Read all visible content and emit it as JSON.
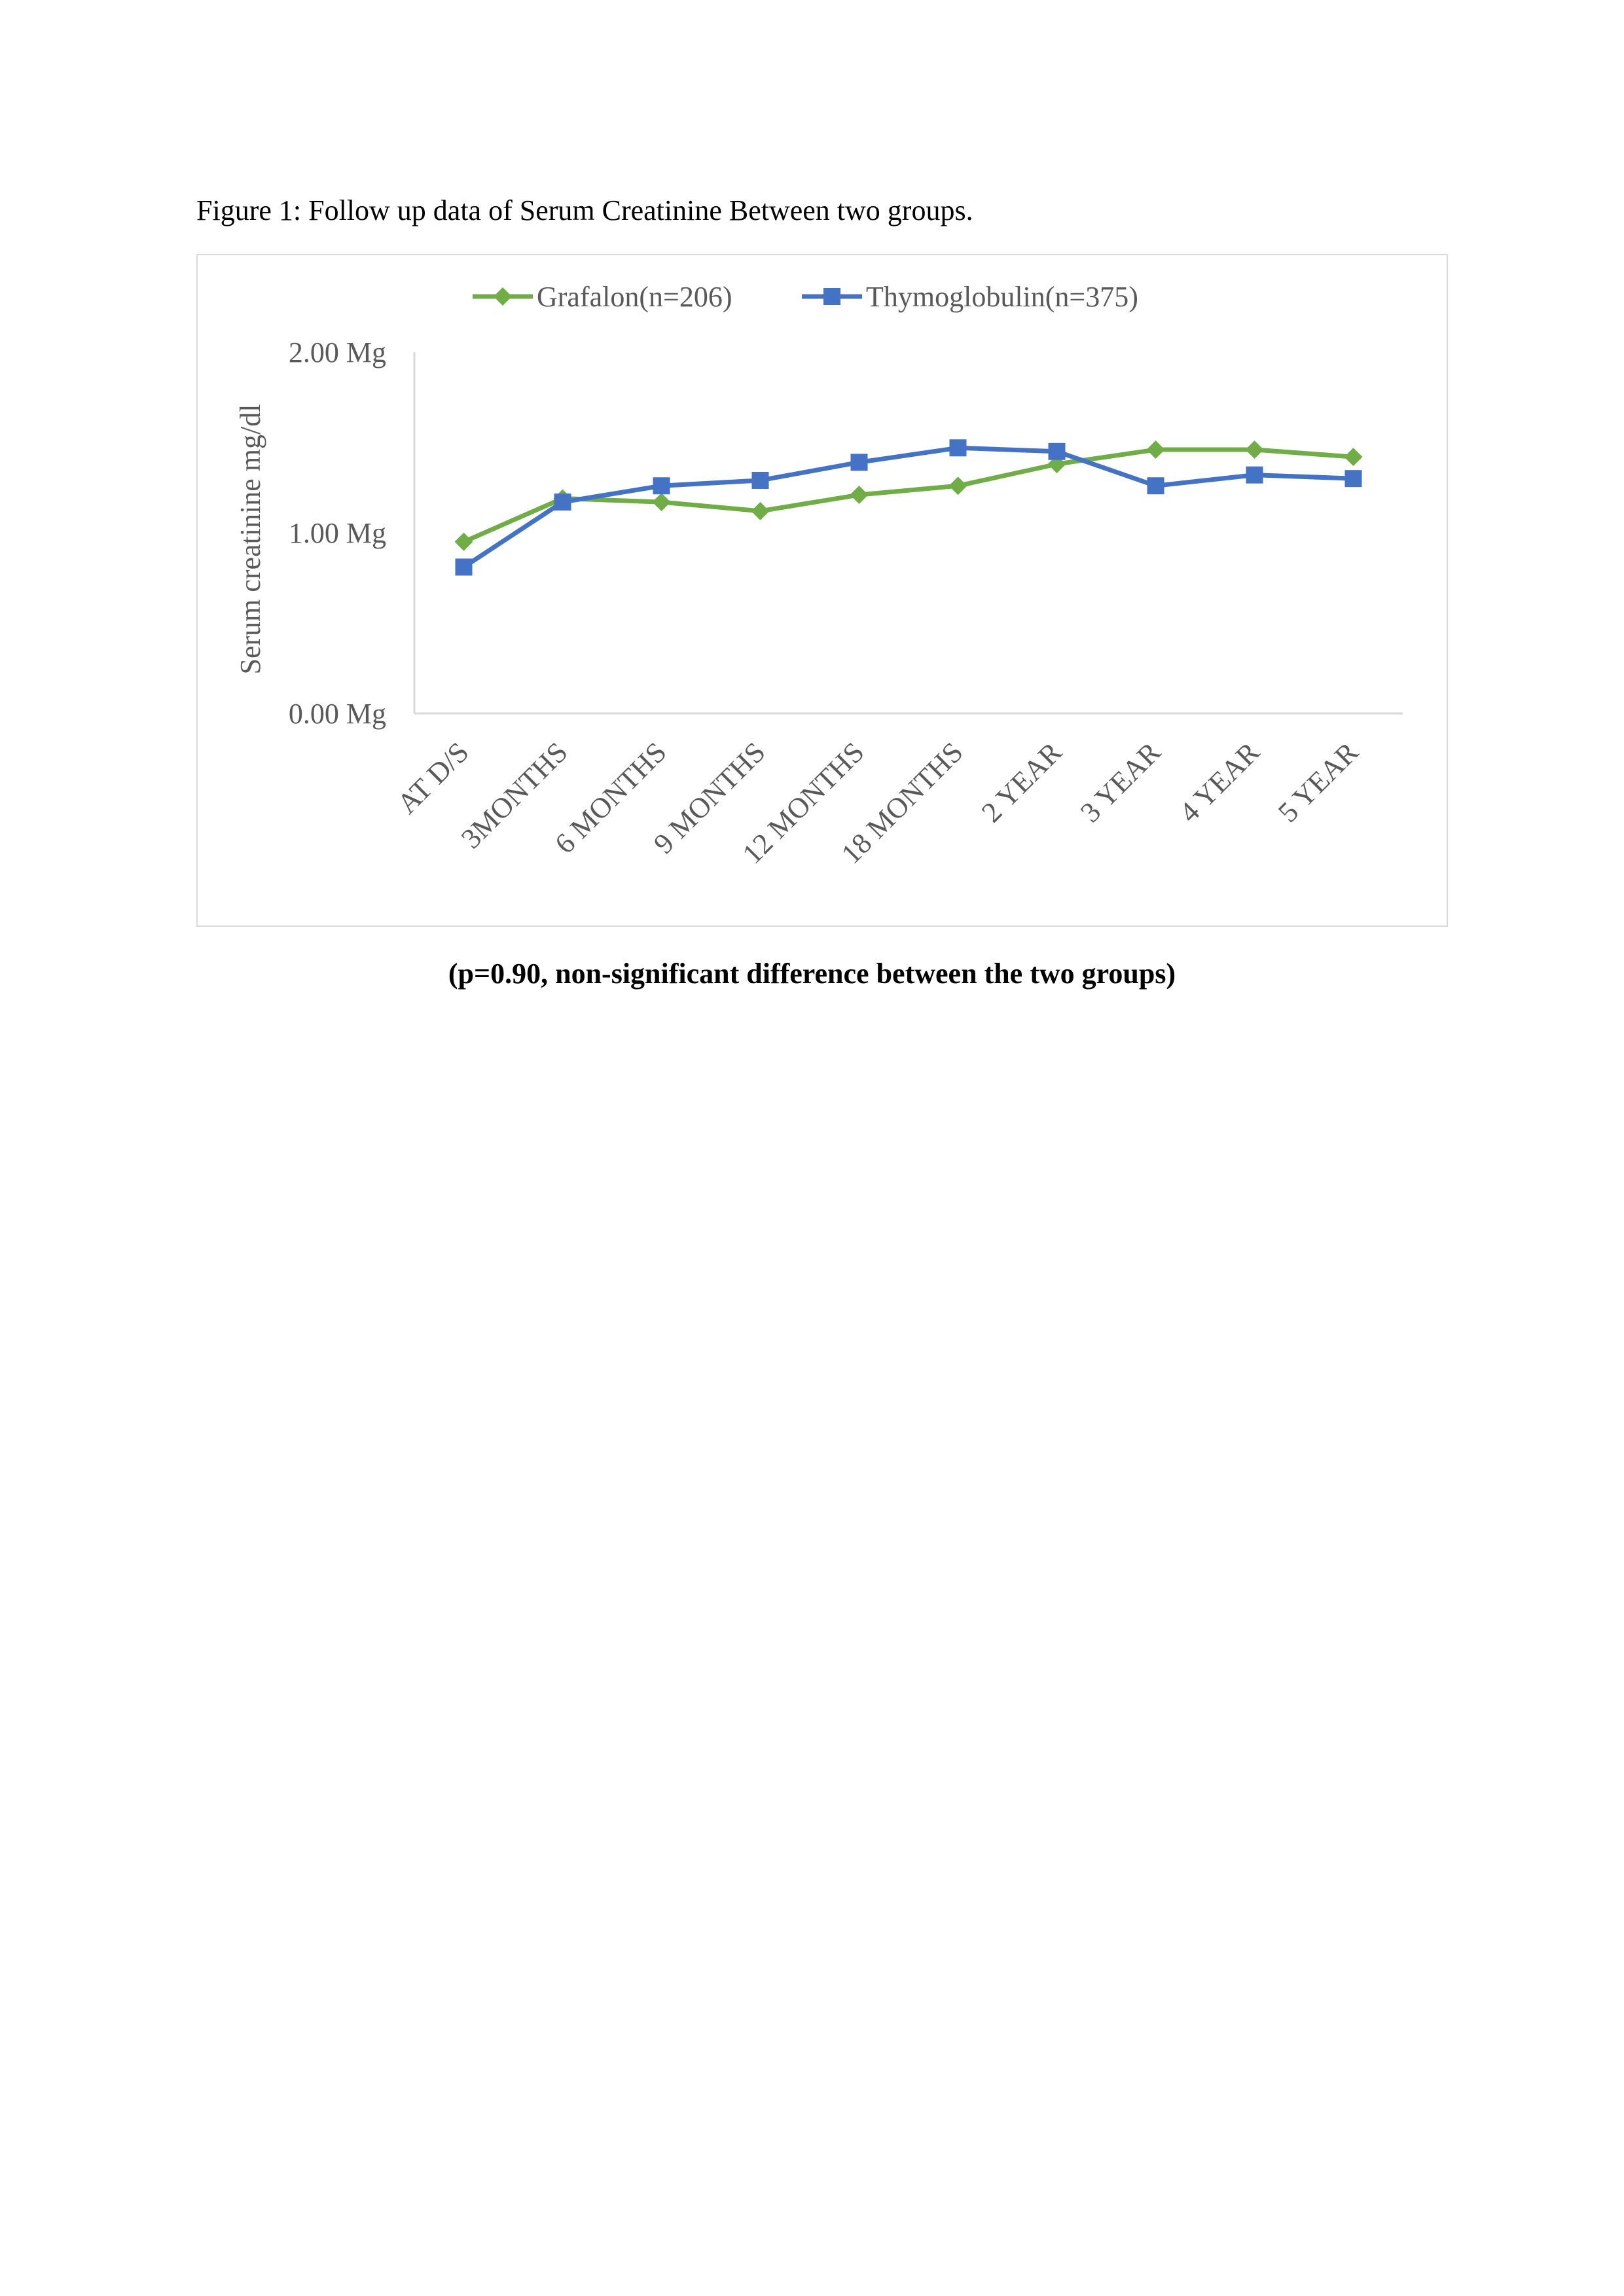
{
  "figure_caption": "Figure 1: Follow up data of Serum Creatinine Between two groups.",
  "note": "(p=0.90, non-significant difference between the two groups)",
  "chart_data": {
    "type": "line",
    "title": "",
    "xlabel": "",
    "ylabel": "Serum creatinine mg/dl",
    "ylim": [
      0,
      2
    ],
    "yticks": [
      {
        "value": 0,
        "label": "0.00 Mg"
      },
      {
        "value": 1,
        "label": "1.00 Mg"
      },
      {
        "value": 2,
        "label": "2.00 Mg"
      }
    ],
    "grid": false,
    "legend_position": "top",
    "categories": [
      "AT D/S",
      "3MONTHS",
      "6 MONTHS",
      "9 MONTHS",
      "12 MONTHS",
      "18 MONTHS",
      "2 YEAR",
      "3 YEAR",
      "4 YEAR",
      "5 YEAR"
    ],
    "series": [
      {
        "name": "Grafalon(n=206)",
        "color": "#70ad47",
        "marker": "diamond",
        "values": [
          0.95,
          1.19,
          1.17,
          1.12,
          1.21,
          1.26,
          1.38,
          1.46,
          1.46,
          1.42
        ]
      },
      {
        "name": "Thymoglobulin(n=375)",
        "color": "#4472c4",
        "marker": "square",
        "values": [
          0.81,
          1.17,
          1.26,
          1.29,
          1.39,
          1.47,
          1.45,
          1.26,
          1.32,
          1.3
        ]
      }
    ]
  }
}
